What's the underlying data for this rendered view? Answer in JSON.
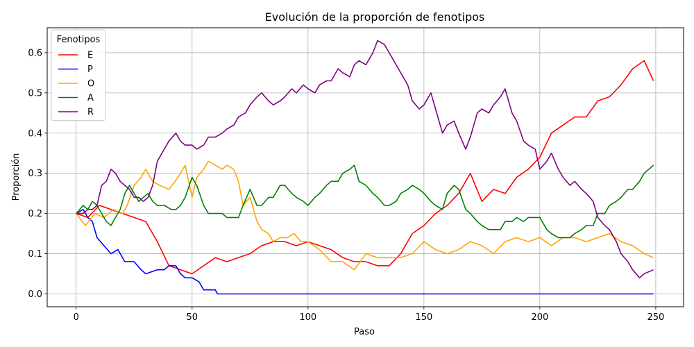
{
  "chart_data": {
    "type": "line",
    "title": "Evolución de la proporción de fenotipos",
    "xlabel": "Paso",
    "ylabel": "Proporción",
    "xlim": [
      -12.5,
      262
    ],
    "ylim": [
      -0.032,
      0.662
    ],
    "xticks": [
      0,
      50,
      100,
      150,
      200,
      250
    ],
    "yticks": [
      0.0,
      0.1,
      0.2,
      0.3,
      0.4,
      0.5,
      0.6
    ],
    "ytick_labels": [
      "0.0",
      "0.1",
      "0.2",
      "0.3",
      "0.4",
      "0.5",
      "0.6"
    ],
    "grid": true,
    "legend": {
      "title": "Fenotipos",
      "position": "top-left"
    },
    "series": [
      {
        "name": "E",
        "color": "#ff0000",
        "x": [
          0,
          5,
          10,
          15,
          20,
          25,
          30,
          35,
          40,
          45,
          50,
          55,
          60,
          65,
          70,
          75,
          80,
          85,
          90,
          95,
          100,
          105,
          110,
          115,
          120,
          125,
          130,
          135,
          140,
          145,
          150,
          155,
          160,
          165,
          170,
          175,
          180,
          185,
          190,
          195,
          200,
          205,
          210,
          215,
          220,
          225,
          230,
          235,
          240,
          245,
          249
        ],
        "values": [
          0.2,
          0.19,
          0.22,
          0.21,
          0.2,
          0.19,
          0.18,
          0.13,
          0.07,
          0.06,
          0.05,
          0.07,
          0.09,
          0.08,
          0.09,
          0.1,
          0.12,
          0.13,
          0.13,
          0.12,
          0.13,
          0.12,
          0.11,
          0.09,
          0.08,
          0.08,
          0.07,
          0.07,
          0.1,
          0.15,
          0.17,
          0.2,
          0.22,
          0.25,
          0.3,
          0.23,
          0.26,
          0.25,
          0.29,
          0.31,
          0.34,
          0.4,
          0.42,
          0.44,
          0.44,
          0.48,
          0.49,
          0.52,
          0.56,
          0.58,
          0.53
        ]
      },
      {
        "name": "P",
        "color": "#0000ff",
        "x": [
          0,
          3,
          5,
          7,
          9,
          12,
          15,
          18,
          21,
          25,
          28,
          30,
          35,
          38,
          40,
          43,
          45,
          47,
          50,
          53,
          55,
          58,
          60,
          61,
          100,
          150,
          200,
          249
        ],
        "values": [
          0.2,
          0.21,
          0.19,
          0.18,
          0.14,
          0.12,
          0.1,
          0.11,
          0.08,
          0.08,
          0.06,
          0.05,
          0.06,
          0.06,
          0.07,
          0.07,
          0.05,
          0.04,
          0.04,
          0.03,
          0.01,
          0.01,
          0.01,
          0.0,
          0.0,
          0.0,
          0.0,
          0.0
        ]
      },
      {
        "name": "O",
        "color": "#ffa500",
        "x": [
          0,
          4,
          8,
          12,
          16,
          20,
          22,
          25,
          28,
          30,
          33,
          36,
          40,
          44,
          47,
          50,
          52,
          55,
          57,
          60,
          63,
          65,
          68,
          70,
          72,
          75,
          78,
          80,
          83,
          85,
          88,
          91,
          94,
          97,
          100,
          105,
          110,
          115,
          120,
          125,
          130,
          135,
          140,
          145,
          150,
          155,
          160,
          165,
          170,
          175,
          180,
          185,
          190,
          195,
          200,
          205,
          210,
          215,
          220,
          225,
          230,
          235,
          240,
          245,
          249
        ],
        "values": [
          0.2,
          0.17,
          0.2,
          0.19,
          0.21,
          0.2,
          0.22,
          0.27,
          0.29,
          0.31,
          0.28,
          0.27,
          0.26,
          0.29,
          0.32,
          0.24,
          0.29,
          0.31,
          0.33,
          0.32,
          0.31,
          0.32,
          0.31,
          0.28,
          0.22,
          0.24,
          0.18,
          0.16,
          0.15,
          0.13,
          0.14,
          0.14,
          0.15,
          0.13,
          0.13,
          0.11,
          0.08,
          0.08,
          0.06,
          0.1,
          0.09,
          0.09,
          0.09,
          0.1,
          0.13,
          0.11,
          0.1,
          0.11,
          0.13,
          0.12,
          0.1,
          0.13,
          0.14,
          0.13,
          0.14,
          0.12,
          0.14,
          0.14,
          0.13,
          0.14,
          0.15,
          0.13,
          0.12,
          0.1,
          0.09
        ]
      },
      {
        "name": "A",
        "color": "#008000",
        "x": [
          0,
          3,
          5,
          7,
          9,
          11,
          13,
          15,
          17,
          19,
          21,
          23,
          25,
          27,
          29,
          31,
          33,
          35,
          38,
          41,
          43,
          45,
          47,
          50,
          52,
          55,
          57,
          60,
          63,
          65,
          68,
          70,
          72,
          75,
          78,
          80,
          83,
          85,
          88,
          90,
          93,
          95,
          98,
          100,
          103,
          105,
          108,
          110,
          113,
          115,
          118,
          120,
          122,
          125,
          128,
          130,
          133,
          135,
          138,
          140,
          143,
          145,
          148,
          150,
          153,
          155,
          158,
          160,
          163,
          165,
          168,
          170,
          173,
          175,
          178,
          180,
          183,
          185,
          188,
          190,
          193,
          195,
          198,
          200,
          203,
          205,
          208,
          210,
          213,
          215,
          218,
          220,
          223,
          225,
          228,
          230,
          233,
          235,
          238,
          240,
          243,
          245,
          249
        ],
        "values": [
          0.2,
          0.22,
          0.21,
          0.23,
          0.22,
          0.2,
          0.18,
          0.17,
          0.19,
          0.21,
          0.25,
          0.27,
          0.25,
          0.23,
          0.24,
          0.25,
          0.23,
          0.22,
          0.22,
          0.21,
          0.21,
          0.22,
          0.24,
          0.29,
          0.27,
          0.22,
          0.2,
          0.2,
          0.2,
          0.19,
          0.19,
          0.19,
          0.22,
          0.26,
          0.22,
          0.22,
          0.24,
          0.24,
          0.27,
          0.27,
          0.25,
          0.24,
          0.23,
          0.22,
          0.24,
          0.25,
          0.27,
          0.28,
          0.28,
          0.3,
          0.31,
          0.32,
          0.28,
          0.27,
          0.25,
          0.24,
          0.22,
          0.22,
          0.23,
          0.25,
          0.26,
          0.27,
          0.26,
          0.25,
          0.23,
          0.22,
          0.21,
          0.25,
          0.27,
          0.26,
          0.21,
          0.2,
          0.18,
          0.17,
          0.16,
          0.16,
          0.16,
          0.18,
          0.18,
          0.19,
          0.18,
          0.19,
          0.19,
          0.19,
          0.16,
          0.15,
          0.14,
          0.14,
          0.14,
          0.15,
          0.16,
          0.17,
          0.17,
          0.2,
          0.2,
          0.22,
          0.23,
          0.24,
          0.26,
          0.26,
          0.28,
          0.3,
          0.32
        ]
      },
      {
        "name": "R",
        "color": "#800080",
        "x": [
          0,
          3,
          5,
          7,
          9,
          11,
          13,
          15,
          17,
          19,
          21,
          23,
          25,
          27,
          29,
          31,
          33,
          35,
          38,
          40,
          43,
          45,
          47,
          50,
          52,
          55,
          57,
          60,
          63,
          65,
          68,
          70,
          73,
          75,
          78,
          80,
          83,
          85,
          88,
          90,
          93,
          95,
          98,
          100,
          103,
          105,
          108,
          110,
          113,
          115,
          118,
          120,
          122,
          125,
          128,
          130,
          133,
          135,
          138,
          140,
          143,
          145,
          148,
          150,
          153,
          155,
          158,
          160,
          163,
          165,
          168,
          170,
          173,
          175,
          178,
          180,
          183,
          185,
          188,
          190,
          193,
          195,
          198,
          200,
          203,
          205,
          208,
          210,
          213,
          215,
          218,
          220,
          223,
          225,
          228,
          230,
          233,
          235,
          238,
          240,
          243,
          245,
          249
        ],
        "values": [
          0.2,
          0.2,
          0.21,
          0.21,
          0.22,
          0.27,
          0.28,
          0.31,
          0.3,
          0.28,
          0.27,
          0.26,
          0.24,
          0.24,
          0.23,
          0.24,
          0.27,
          0.33,
          0.36,
          0.38,
          0.4,
          0.38,
          0.37,
          0.37,
          0.36,
          0.37,
          0.39,
          0.39,
          0.4,
          0.41,
          0.42,
          0.44,
          0.45,
          0.47,
          0.49,
          0.5,
          0.48,
          0.47,
          0.48,
          0.49,
          0.51,
          0.5,
          0.52,
          0.51,
          0.5,
          0.52,
          0.53,
          0.53,
          0.56,
          0.55,
          0.54,
          0.57,
          0.58,
          0.57,
          0.6,
          0.63,
          0.62,
          0.6,
          0.57,
          0.55,
          0.52,
          0.48,
          0.46,
          0.47,
          0.5,
          0.46,
          0.4,
          0.42,
          0.43,
          0.4,
          0.36,
          0.39,
          0.45,
          0.46,
          0.45,
          0.47,
          0.49,
          0.51,
          0.45,
          0.43,
          0.38,
          0.37,
          0.36,
          0.31,
          0.33,
          0.35,
          0.31,
          0.29,
          0.27,
          0.28,
          0.26,
          0.25,
          0.23,
          0.19,
          0.17,
          0.16,
          0.13,
          0.1,
          0.08,
          0.06,
          0.04,
          0.05,
          0.06
        ]
      }
    ]
  }
}
